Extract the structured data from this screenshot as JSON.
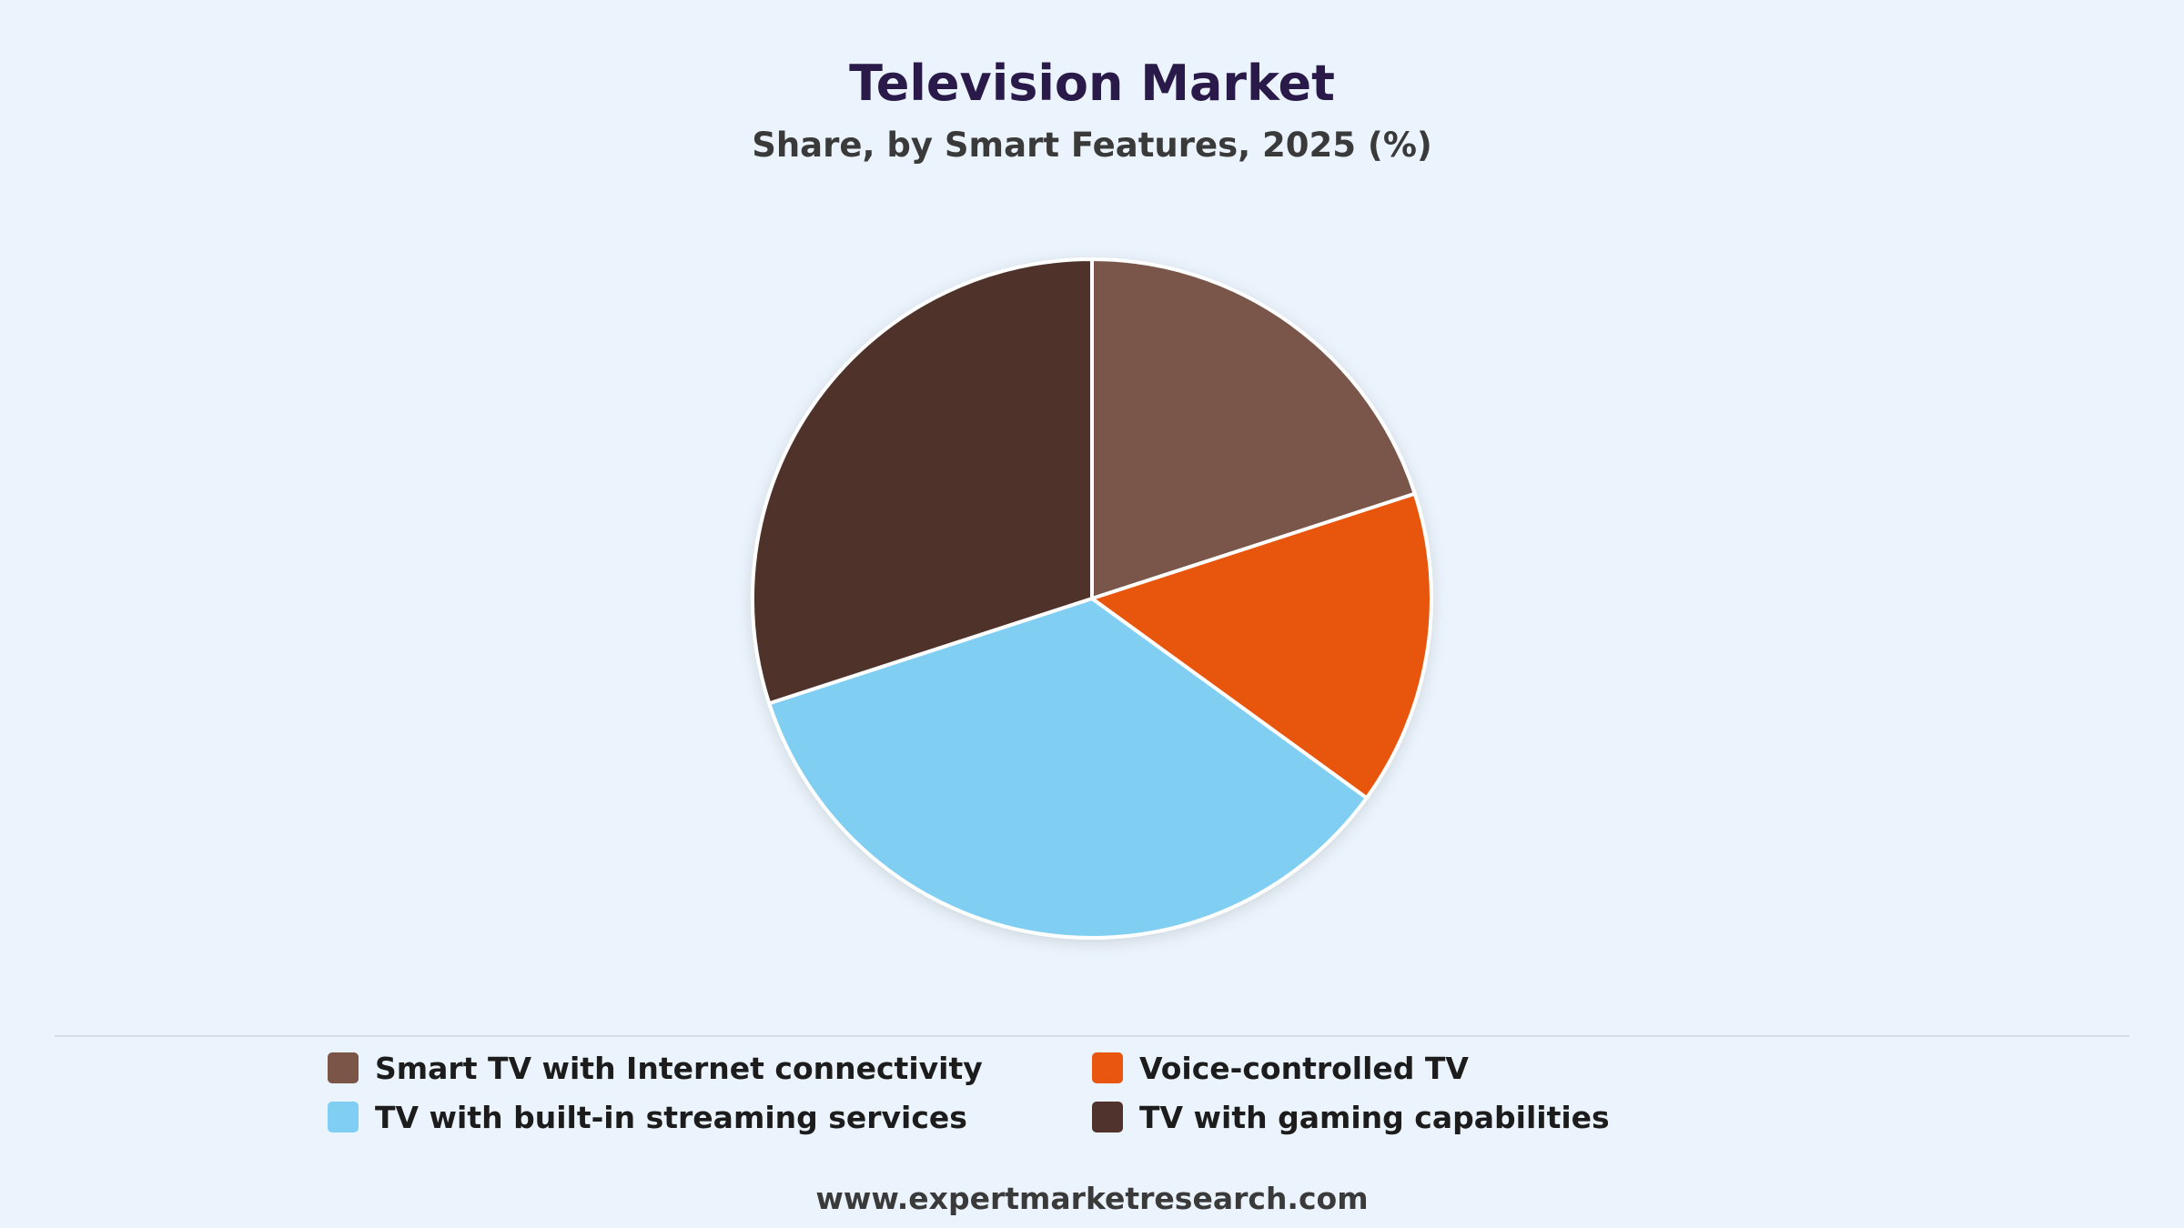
{
  "chart_data": {
    "type": "pie",
    "title": "Television Market",
    "subtitle": "Share, by Smart Features, 2025 (%)",
    "source": "www.expertmarketresearch.com",
    "legend_placement": "bottom",
    "slices": [
      {
        "name": "Smart TV with Internet connectivity",
        "value": 20,
        "color": "#7a5548"
      },
      {
        "name": "Voice-controlled TV",
        "value": 15,
        "color": "#e8560f"
      },
      {
        "name": "TV with built-in streaming services",
        "value": 35,
        "color": "#80cff2"
      },
      {
        "name": "TV with gaming capabilities",
        "value": 30,
        "color": "#4f332c"
      }
    ]
  }
}
